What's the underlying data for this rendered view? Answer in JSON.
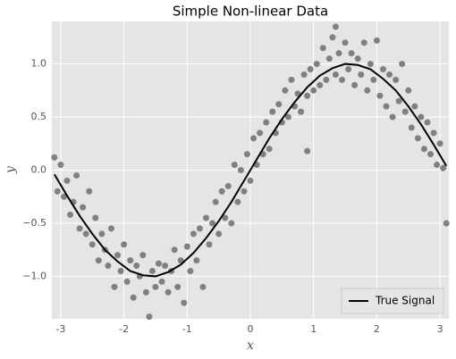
{
  "chart_data": {
    "type": "scatter",
    "title": "Simple Non-linear Data",
    "x_label": "x",
    "y_label": "y",
    "xlim": [
      -3.14,
      3.14
    ],
    "ylim": [
      -1.4,
      1.4
    ],
    "xticks": [
      -3,
      -2,
      -1,
      0,
      1,
      2,
      3
    ],
    "yticks": [
      {
        "value": -1.0,
        "label": "−1.0"
      },
      {
        "value": -0.5,
        "label": "−0.5"
      },
      {
        "value": 0.0,
        "label": "0.0"
      },
      {
        "value": 0.5,
        "label": "0.5"
      },
      {
        "value": 1.0,
        "label": "1.0"
      }
    ],
    "grid": true,
    "legend": "lower right",
    "series": [
      {
        "type": "scatter",
        "color": "#808080",
        "x": [
          -3.1,
          -3.05,
          -3.0,
          -2.95,
          -2.9,
          -2.85,
          -2.8,
          -2.75,
          -2.7,
          -2.65,
          -2.6,
          -2.55,
          -2.5,
          -2.45,
          -2.4,
          -2.35,
          -2.3,
          -2.25,
          -2.2,
          -2.15,
          -2.1,
          -2.05,
          -2.0,
          -1.95,
          -1.9,
          -1.85,
          -1.8,
          -1.75,
          -1.7,
          -1.65,
          -1.6,
          -1.55,
          -1.5,
          -1.45,
          -1.4,
          -1.35,
          -1.3,
          -1.25,
          -1.2,
          -1.15,
          -1.1,
          -1.05,
          -1.0,
          -0.95,
          -0.9,
          -0.85,
          -0.8,
          -0.75,
          -0.7,
          -0.65,
          -0.6,
          -0.55,
          -0.5,
          -0.45,
          -0.4,
          -0.35,
          -0.3,
          -0.25,
          -0.2,
          -0.15,
          -0.1,
          -0.05,
          0.0,
          0.05,
          0.1,
          0.15,
          0.2,
          0.25,
          0.3,
          0.35,
          0.4,
          0.45,
          0.5,
          0.55,
          0.6,
          0.65,
          0.7,
          0.75,
          0.8,
          0.85,
          0.9,
          0.95,
          1.0,
          1.05,
          1.1,
          1.15,
          1.2,
          1.25,
          1.3,
          1.35,
          1.4,
          1.45,
          1.5,
          1.55,
          1.6,
          1.65,
          1.7,
          1.75,
          1.8,
          1.85,
          1.9,
          1.95,
          2.0,
          2.05,
          2.1,
          2.15,
          2.2,
          2.25,
          2.3,
          2.35,
          2.4,
          2.45,
          2.5,
          2.55,
          2.6,
          2.65,
          2.7,
          2.75,
          2.8,
          2.85,
          2.9,
          2.95,
          3.0,
          3.05,
          3.1,
          0.9,
          1.35
        ],
        "values": [
          0.12,
          -0.2,
          0.05,
          -0.25,
          -0.1,
          -0.42,
          -0.3,
          -0.05,
          -0.55,
          -0.35,
          -0.6,
          -0.2,
          -0.7,
          -0.45,
          -0.85,
          -0.6,
          -0.75,
          -0.9,
          -0.55,
          -1.1,
          -0.8,
          -0.95,
          -0.7,
          -1.05,
          -0.85,
          -1.2,
          -0.9,
          -1.0,
          -0.8,
          -1.15,
          -1.38,
          -0.95,
          -1.1,
          -0.88,
          -1.05,
          -0.9,
          -1.15,
          -0.95,
          -0.75,
          -1.1,
          -0.85,
          -1.25,
          -0.72,
          -0.95,
          -0.6,
          -0.85,
          -0.55,
          -1.1,
          -0.45,
          -0.7,
          -0.5,
          -0.3,
          -0.6,
          -0.2,
          -0.45,
          -0.15,
          -0.5,
          0.05,
          -0.3,
          0.0,
          -0.2,
          0.15,
          -0.1,
          0.3,
          0.05,
          0.35,
          0.15,
          0.45,
          0.2,
          0.55,
          0.35,
          0.62,
          0.45,
          0.75,
          0.5,
          0.85,
          0.6,
          0.72,
          0.55,
          0.9,
          0.7,
          0.95,
          0.75,
          1.0,
          0.8,
          1.15,
          0.85,
          1.05,
          1.25,
          0.9,
          1.1,
          0.85,
          1.2,
          0.95,
          1.1,
          0.8,
          1.05,
          0.9,
          1.2,
          0.75,
          1.0,
          0.85,
          1.22,
          0.7,
          0.95,
          0.6,
          0.9,
          0.5,
          0.85,
          0.65,
          1.0,
          0.55,
          0.75,
          0.4,
          0.6,
          0.3,
          0.5,
          0.2,
          0.45,
          0.15,
          0.35,
          0.05,
          0.25,
          0.02,
          -0.5,
          0.18,
          1.35
        ]
      },
      {
        "type": "line",
        "name": "True Signal",
        "color": "#000000",
        "x": [
          -3.1,
          -2.9,
          -2.7,
          -2.5,
          -2.3,
          -2.1,
          -1.9,
          -1.7,
          -1.5,
          -1.3,
          -1.1,
          -0.9,
          -0.7,
          -0.5,
          -0.3,
          -0.1,
          0.1,
          0.3,
          0.5,
          0.7,
          0.9,
          1.1,
          1.3,
          1.5,
          1.7,
          1.9,
          2.1,
          2.3,
          2.5,
          2.7,
          2.9,
          3.1
        ],
        "values": [
          -0.04,
          -0.24,
          -0.43,
          -0.6,
          -0.75,
          -0.86,
          -0.95,
          -0.99,
          -1.0,
          -0.96,
          -0.89,
          -0.78,
          -0.64,
          -0.48,
          -0.3,
          -0.1,
          0.1,
          0.3,
          0.48,
          0.64,
          0.78,
          0.89,
          0.96,
          1.0,
          0.99,
          0.95,
          0.86,
          0.75,
          0.6,
          0.43,
          0.24,
          0.04
        ]
      }
    ]
  }
}
